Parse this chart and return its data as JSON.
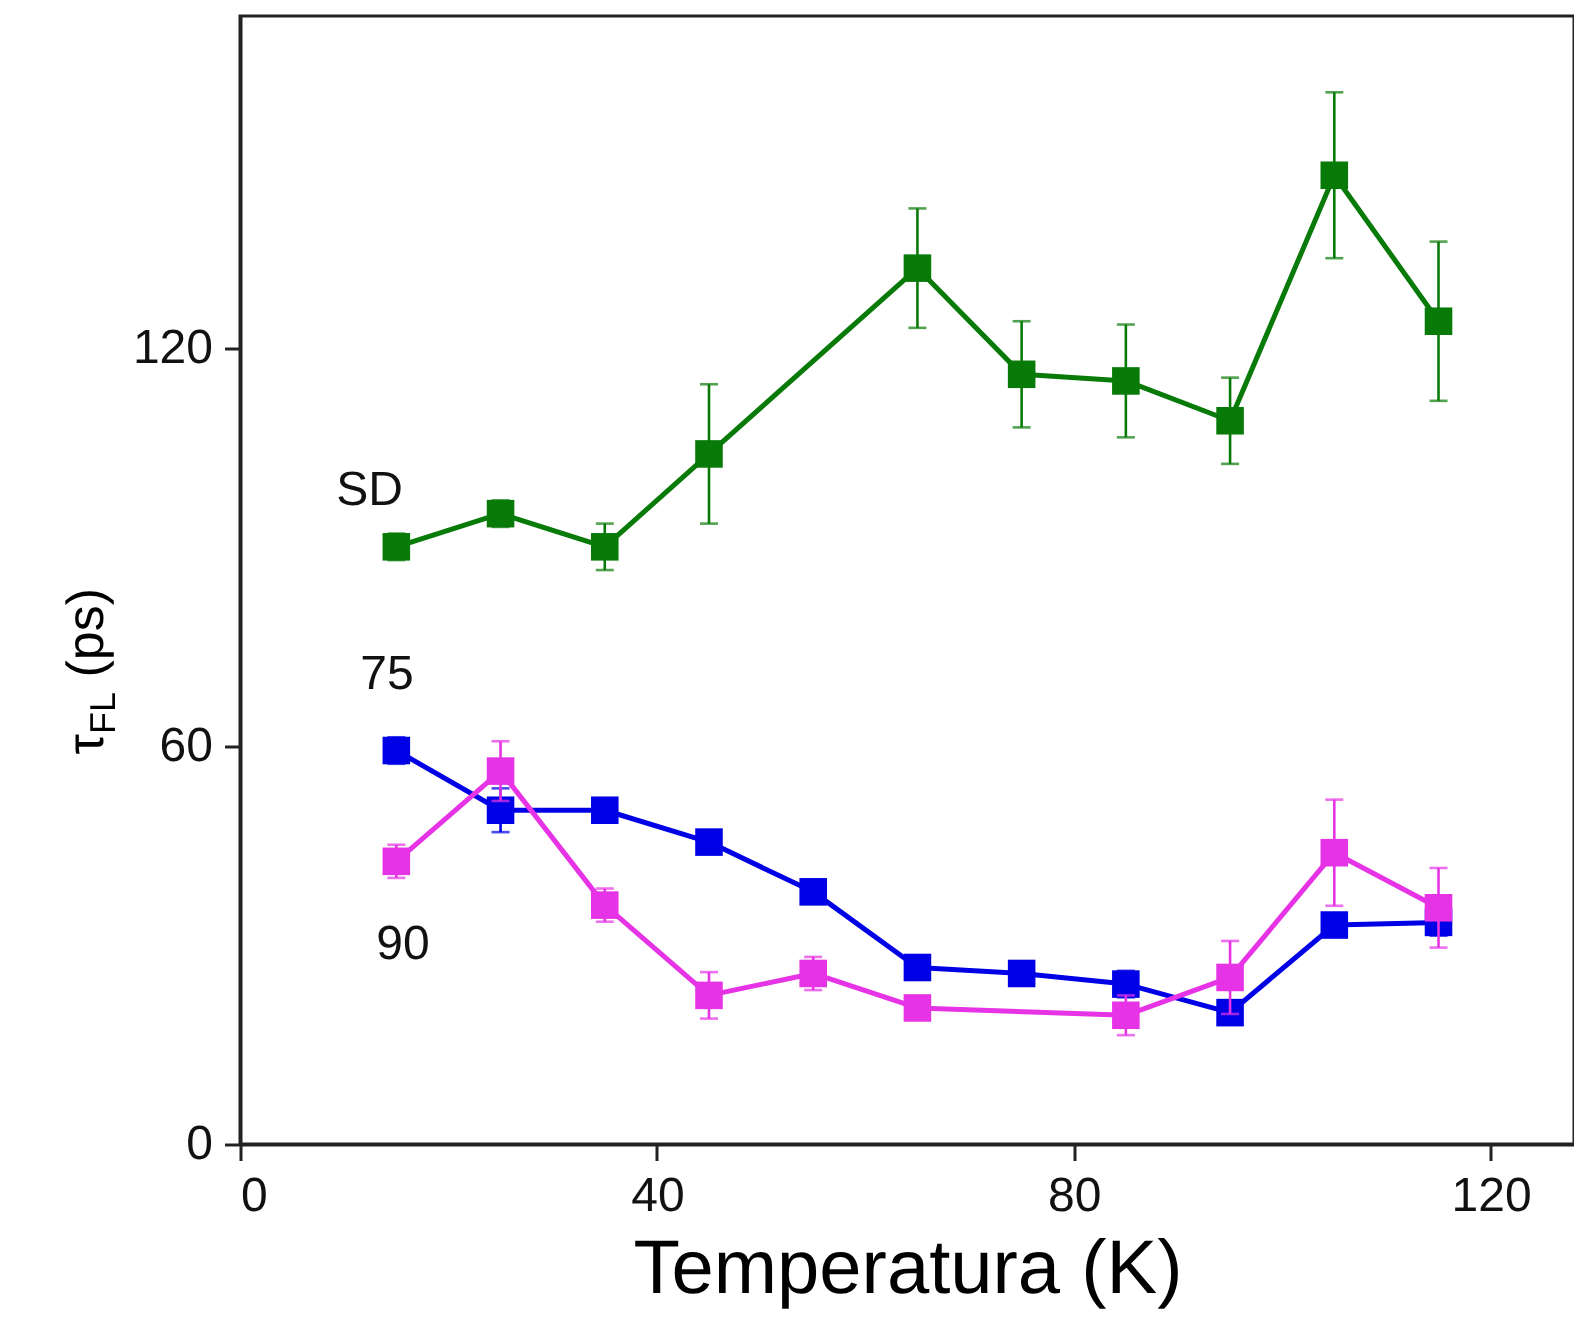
{
  "chart_data": {
    "type": "line",
    "xlabel": "Temperatura (K)",
    "ylabel": "τ$_{FL}$ (ps)",
    "xlim": [
      0,
      128
    ],
    "xticks": [
      0,
      40,
      80,
      120
    ],
    "ylim": [
      0,
      170
    ],
    "yticks": [
      0,
      60,
      120
    ],
    "grid": false,
    "marker": "square",
    "line_style": "solid",
    "series": [
      {
        "name": "SD",
        "color": "#087a08",
        "x": [
          15,
          25,
          35,
          45,
          65,
          75,
          85,
          95,
          105,
          115
        ],
        "values": [
          90,
          95,
          90,
          104,
          132,
          116,
          115,
          109,
          146,
          124
        ],
        "errors": [
          2,
          2,
          3.5,
          10.5,
          9,
          8,
          8.5,
          6.5,
          12.5,
          12
        ]
      },
      {
        "name": "75",
        "color": "#0000e6",
        "x": [
          15,
          25,
          35,
          45,
          55,
          65,
          75,
          85,
          95,
          105,
          115
        ],
        "values": [
          59.3,
          50.3,
          50.3,
          45.5,
          38,
          26.6,
          25.7,
          24.1,
          19.8,
          33,
          33.4
        ],
        "errors": [
          2,
          3.3,
          null,
          null,
          null,
          null,
          null,
          2,
          null,
          null,
          2
        ]
      },
      {
        "name": "90",
        "color": "#e633e6",
        "x": [
          15,
          25,
          35,
          45,
          55,
          65,
          85,
          95,
          105,
          115
        ],
        "values": [
          42.6,
          56.2,
          36,
          22.4,
          25.7,
          20.5,
          19.4,
          25.1,
          43.9,
          35.6
        ],
        "errors": [
          2.5,
          4.5,
          2.5,
          3.5,
          2.5,
          null,
          3,
          5.5,
          8,
          6
        ]
      }
    ]
  }
}
